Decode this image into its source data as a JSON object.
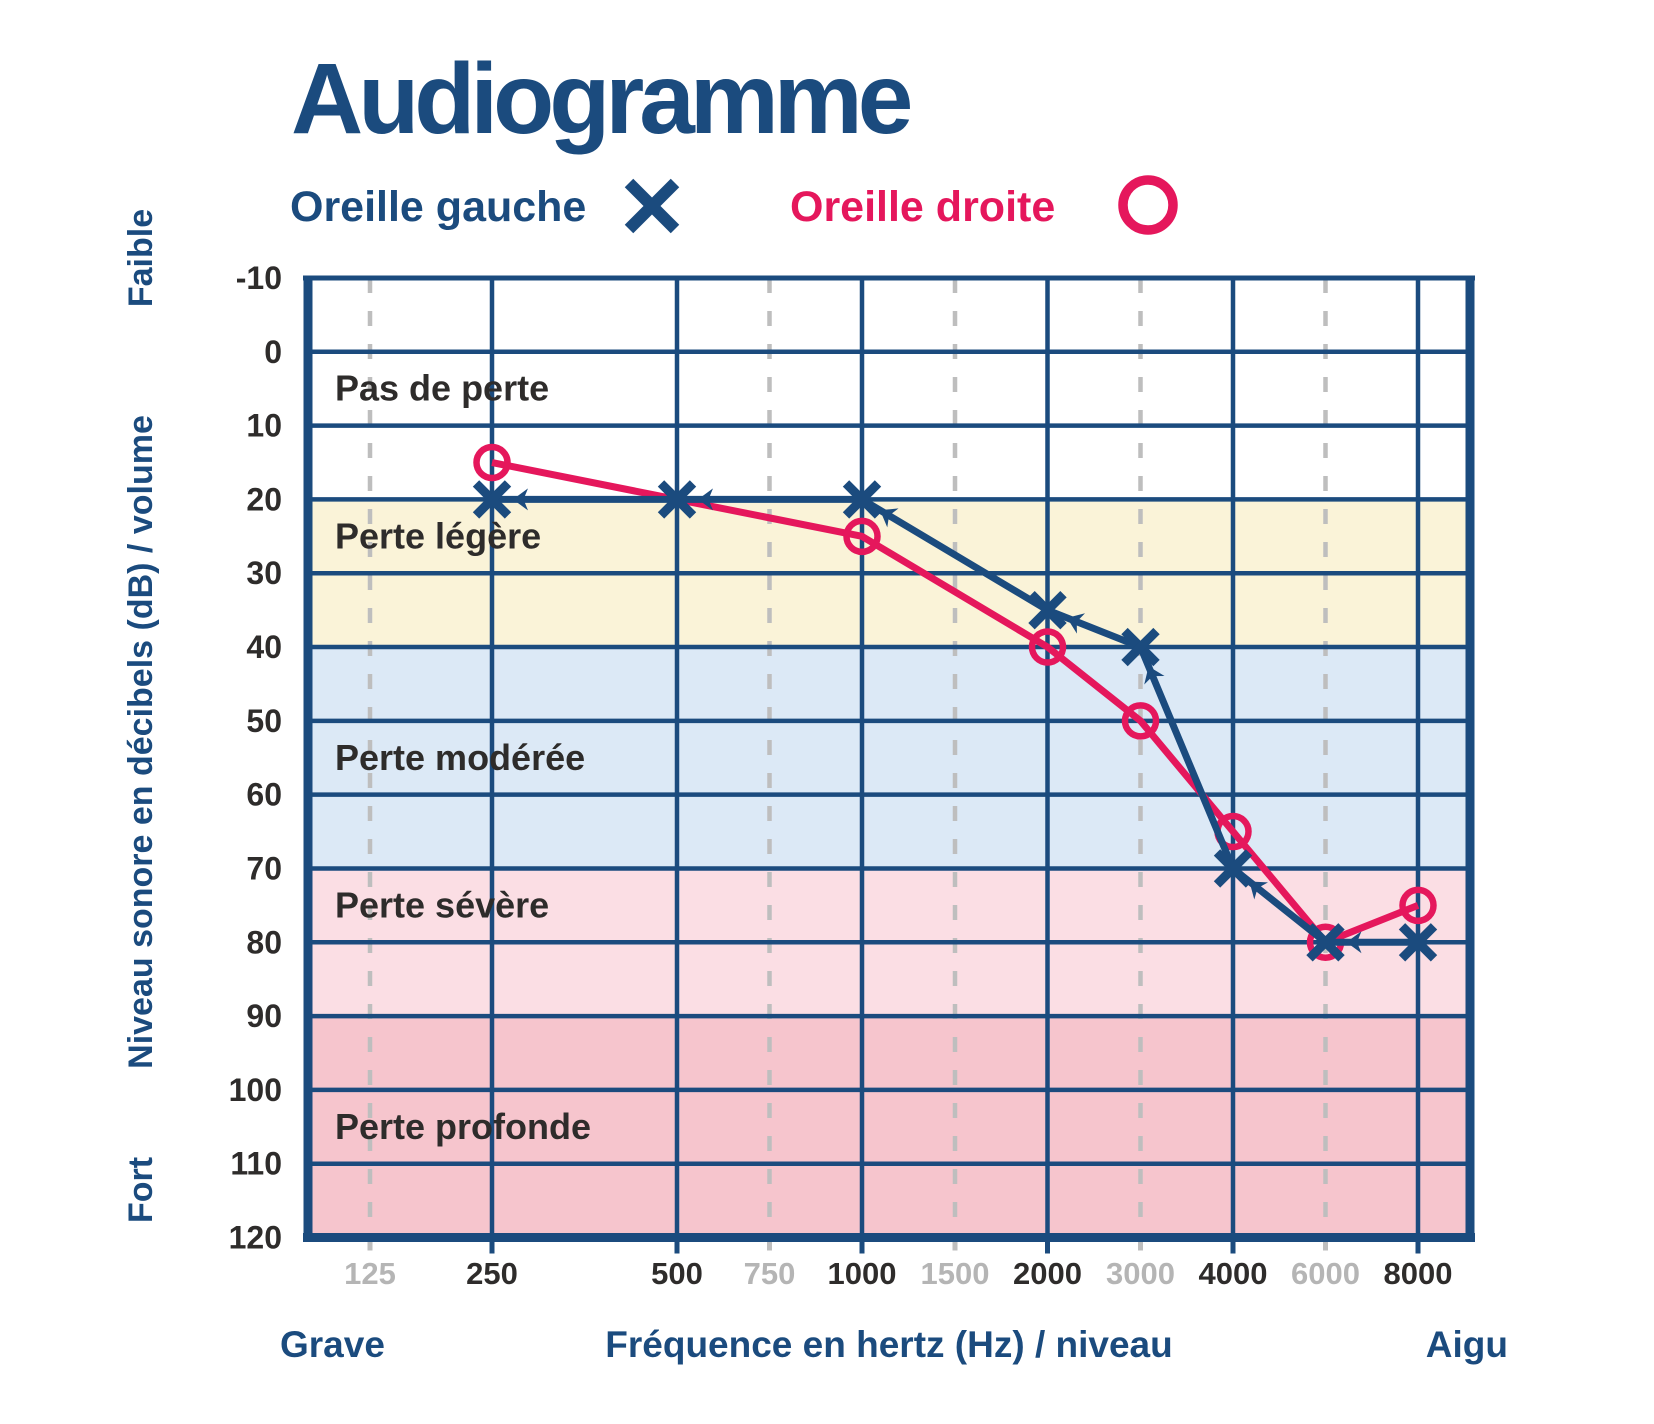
{
  "title": "Audiogramme",
  "legend": {
    "left_ear": {
      "label": "Oreille gauche",
      "marker": "x"
    },
    "right_ear": {
      "label": "Oreille droite",
      "marker": "circle"
    }
  },
  "axes": {
    "y_title": "Niveau sonore en décibels (dB) / volume",
    "y_top_label": "Faible",
    "y_bottom_label": "Fort",
    "x_title": "Fréquence en hertz (Hz) / niveau",
    "x_left_label": "Grave",
    "x_right_label": "Aigu"
  },
  "colors": {
    "navy": "#1B4B7E",
    "crimson": "#E5175C",
    "grid_dashed": "#BEBEBE",
    "muted_label": "#B5B5B5",
    "dark_text": "#2E2C2B",
    "zone_yellow": "#FAF3D8",
    "zone_blue": "#DCE9F6",
    "zone_pink": "#FBDEE4",
    "zone_deep_pink": "#F6C5CD"
  },
  "chart_data": {
    "type": "line",
    "title": "Audiogramme",
    "xlabel": "Fréquence en hertz (Hz) / niveau",
    "ylabel": "Niveau sonore en décibels (dB) / volume",
    "x_unit": "Hz",
    "y_unit": "dB",
    "ylim": [
      -10,
      120
    ],
    "grid": true,
    "y_ticks": [
      -10,
      0,
      10,
      20,
      30,
      40,
      50,
      60,
      70,
      80,
      90,
      100,
      110,
      120
    ],
    "x_ticks": [
      {
        "hz": 125,
        "label": "125",
        "emphasis": false
      },
      {
        "hz": 250,
        "label": "250",
        "emphasis": true
      },
      {
        "hz": 500,
        "label": "500",
        "emphasis": true
      },
      {
        "hz": 750,
        "label": "750",
        "emphasis": false
      },
      {
        "hz": 1000,
        "label": "1000",
        "emphasis": true
      },
      {
        "hz": 1500,
        "label": "1500",
        "emphasis": false
      },
      {
        "hz": 2000,
        "label": "2000",
        "emphasis": true
      },
      {
        "hz": 3000,
        "label": "3000",
        "emphasis": false
      },
      {
        "hz": 4000,
        "label": "4000",
        "emphasis": true
      },
      {
        "hz": 6000,
        "label": "6000",
        "emphasis": false
      },
      {
        "hz": 8000,
        "label": "8000",
        "emphasis": true
      }
    ],
    "zones": [
      {
        "label": "Pas de perte",
        "from_db": -10,
        "to_db": 20,
        "color": "#FFFFFF",
        "label_db": 5
      },
      {
        "label": "Perte légère",
        "from_db": 20,
        "to_db": 40,
        "color": "#FAF3D8",
        "label_db": 25
      },
      {
        "label": "Perte modérée",
        "from_db": 40,
        "to_db": 70,
        "color": "#DCE9F6",
        "label_db": 55
      },
      {
        "label": "Perte sévère",
        "from_db": 70,
        "to_db": 90,
        "color": "#FBDEE4",
        "label_db": 75
      },
      {
        "label": "Perte profonde",
        "from_db": 90,
        "to_db": 120,
        "color": "#F6C5CD",
        "label_db": 105
      }
    ],
    "series": [
      {
        "name": "Oreille droite",
        "ear": "right",
        "marker": "circle",
        "color": "#E5175C",
        "arrowheads": false,
        "points": [
          [
            250,
            15
          ],
          [
            1000,
            25
          ],
          [
            2000,
            40
          ],
          [
            3000,
            50
          ],
          [
            4000,
            65
          ],
          [
            6000,
            80
          ],
          [
            8000,
            75
          ]
        ]
      },
      {
        "name": "Oreille gauche",
        "ear": "left",
        "marker": "x",
        "color": "#1B4B7E",
        "arrowheads": true,
        "points": [
          [
            250,
            20
          ],
          [
            500,
            20
          ],
          [
            1000,
            20
          ],
          [
            2000,
            35
          ],
          [
            3000,
            40
          ],
          [
            4000,
            70
          ],
          [
            6000,
            80
          ],
          [
            8000,
            80
          ]
        ]
      }
    ]
  }
}
